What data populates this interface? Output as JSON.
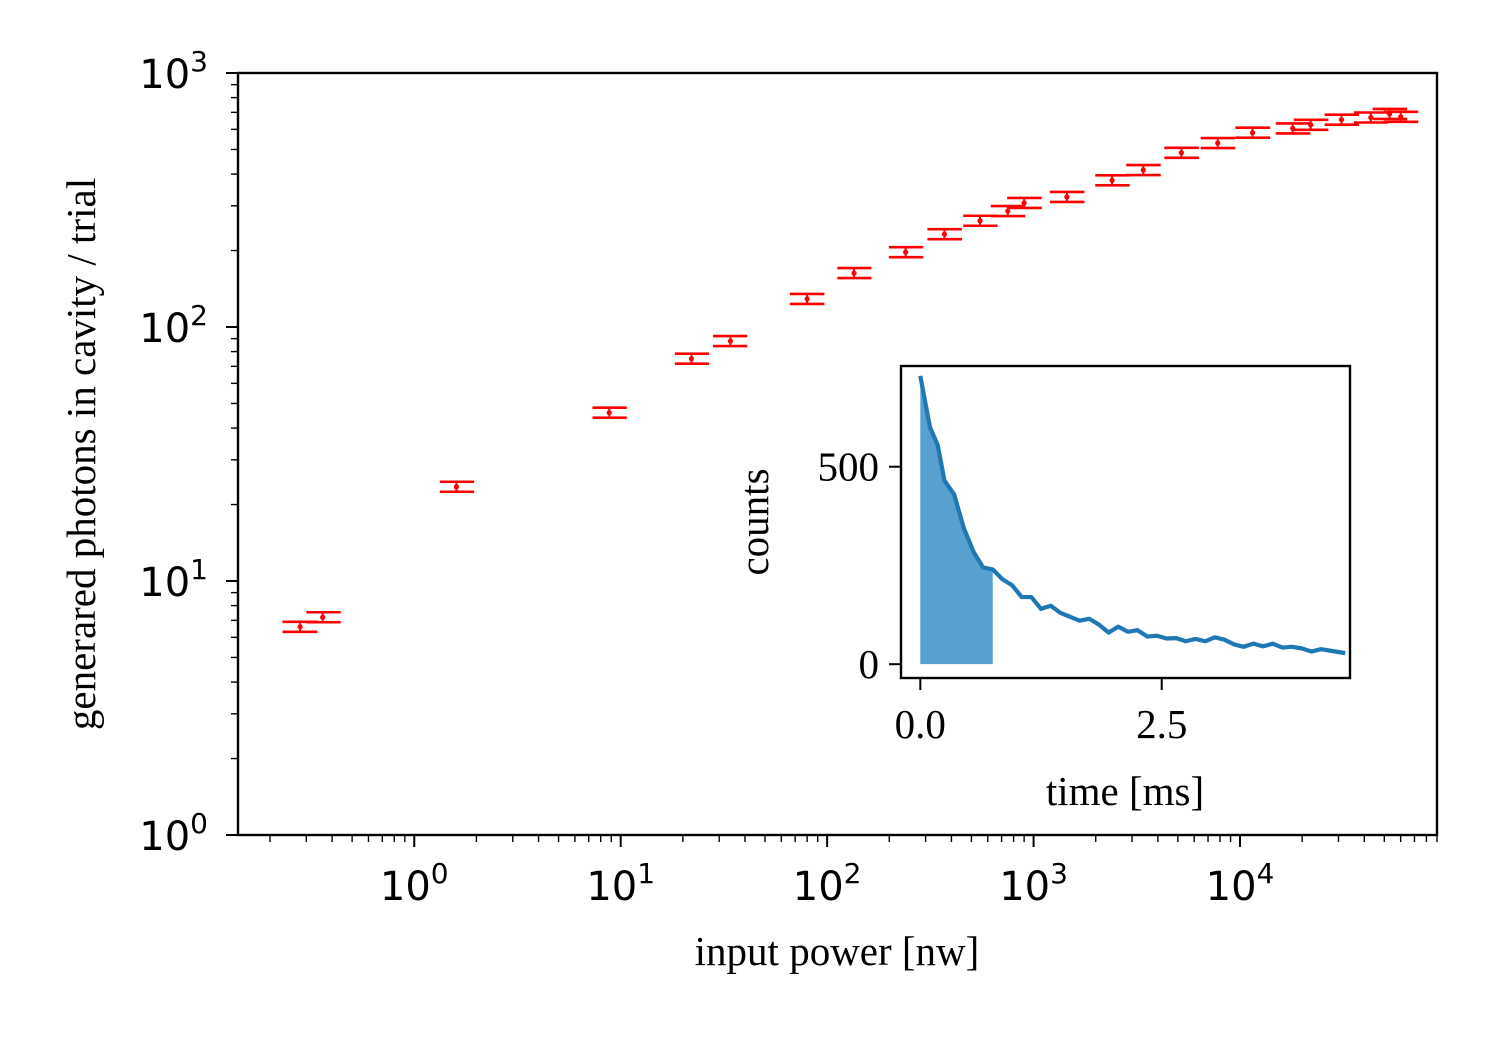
{
  "chart_data": [
    {
      "type": "scatter",
      "title": "",
      "xlabel": "input power [nw]",
      "ylabel": "generared photons in cavity / trial",
      "xscale": "log",
      "yscale": "log",
      "xlim": [
        0.14,
        90000
      ],
      "ylim": [
        1,
        1000
      ],
      "xtick_labels": [
        {
          "value": 1,
          "base": "10",
          "exp": "0"
        },
        {
          "value": 10,
          "base": "10",
          "exp": "1"
        },
        {
          "value": 100,
          "base": "10",
          "exp": "2"
        },
        {
          "value": 1000,
          "base": "10",
          "exp": "3"
        },
        {
          "value": 10000,
          "base": "10",
          "exp": "4"
        }
      ],
      "ytick_labels": [
        {
          "value": 1,
          "base": "10",
          "exp": "0"
        },
        {
          "value": 10,
          "base": "10",
          "exp": "1"
        },
        {
          "value": 100,
          "base": "10",
          "exp": "2"
        },
        {
          "value": 1000,
          "base": "10",
          "exp": "3"
        }
      ],
      "series": [
        {
          "name": "generated photons",
          "color": "#ff0000",
          "style": "horizontal error bars with point markers",
          "points": [
            {
              "x": 0.28,
              "y": 6.6,
              "xlo": 0.23,
              "xhi": 0.34
            },
            {
              "x": 0.36,
              "y": 7.2,
              "xlo": 0.3,
              "xhi": 0.44
            },
            {
              "x": 1.6,
              "y": 23.5,
              "xlo": 1.33,
              "xhi": 1.95
            },
            {
              "x": 8.8,
              "y": 46,
              "xlo": 7.3,
              "xhi": 10.7
            },
            {
              "x": 22,
              "y": 75,
              "xlo": 18.3,
              "xhi": 26.8
            },
            {
              "x": 34,
              "y": 88,
              "xlo": 28,
              "xhi": 41
            },
            {
              "x": 80,
              "y": 129,
              "xlo": 66,
              "xhi": 97
            },
            {
              "x": 135,
              "y": 163,
              "xlo": 112,
              "xhi": 164
            },
            {
              "x": 240,
              "y": 197,
              "xlo": 199,
              "xhi": 292
            },
            {
              "x": 370,
              "y": 232,
              "xlo": 306,
              "xhi": 450
            },
            {
              "x": 550,
              "y": 262,
              "xlo": 456,
              "xhi": 670
            },
            {
              "x": 750,
              "y": 286,
              "xlo": 620,
              "xhi": 912
            },
            {
              "x": 900,
              "y": 308,
              "xlo": 745,
              "xhi": 1095
            },
            {
              "x": 1450,
              "y": 325,
              "xlo": 1200,
              "xhi": 1765
            },
            {
              "x": 2400,
              "y": 378,
              "xlo": 1990,
              "xhi": 2920
            },
            {
              "x": 3400,
              "y": 415,
              "xlo": 2810,
              "xhi": 4130
            },
            {
              "x": 5200,
              "y": 485,
              "xlo": 4300,
              "xhi": 6320
            },
            {
              "x": 7800,
              "y": 530,
              "xlo": 6450,
              "xhi": 9480
            },
            {
              "x": 11500,
              "y": 582,
              "xlo": 9500,
              "xhi": 14000
            },
            {
              "x": 18000,
              "y": 605,
              "xlo": 14900,
              "xhi": 21900
            },
            {
              "x": 22000,
              "y": 625,
              "xlo": 18200,
              "xhi": 26800
            },
            {
              "x": 31000,
              "y": 655,
              "xlo": 25700,
              "xhi": 37700
            },
            {
              "x": 43000,
              "y": 668,
              "xlo": 35600,
              "xhi": 52300
            },
            {
              "x": 53000,
              "y": 690,
              "xlo": 43900,
              "xhi": 64500
            },
            {
              "x": 60000,
              "y": 672,
              "xlo": 49700,
              "xhi": 73000
            }
          ]
        }
      ]
    },
    {
      "type": "area",
      "title": "",
      "xlabel": "time [ms]",
      "ylabel": "counts",
      "xlim": [
        -0.2,
        4.45
      ],
      "ylim": [
        -35,
        755
      ],
      "xtick_labels": [
        "0.0",
        "2.5"
      ],
      "xtick_values": [
        0,
        2.5
      ],
      "ytick_labels": [
        "0",
        "500"
      ],
      "ytick_values": [
        0,
        500
      ],
      "line_color": "#1f77b4",
      "fill_color": "#57a0cf",
      "fill_range": [
        0,
        0.75
      ],
      "x": [
        0.0,
        0.1,
        0.18,
        0.25,
        0.35,
        0.45,
        0.55,
        0.65,
        0.75,
        0.85,
        0.95,
        1.05,
        1.15,
        1.25,
        1.35,
        1.45,
        1.55,
        1.65,
        1.75,
        1.85,
        1.95,
        2.05,
        2.15,
        2.25,
        2.35,
        2.45,
        2.55,
        2.65,
        2.75,
        2.85,
        2.95,
        3.05,
        3.15,
        3.25,
        3.35,
        3.45,
        3.55,
        3.65,
        3.75,
        3.85,
        3.95,
        4.05,
        4.15,
        4.25,
        4.4
      ],
      "y": [
        730,
        600,
        555,
        465,
        430,
        345,
        285,
        245,
        240,
        215,
        200,
        170,
        170,
        140,
        148,
        130,
        120,
        110,
        115,
        100,
        80,
        95,
        82,
        86,
        70,
        72,
        65,
        66,
        58,
        64,
        58,
        68,
        62,
        50,
        44,
        52,
        45,
        52,
        42,
        44,
        40,
        32,
        38,
        34,
        28
      ]
    }
  ]
}
